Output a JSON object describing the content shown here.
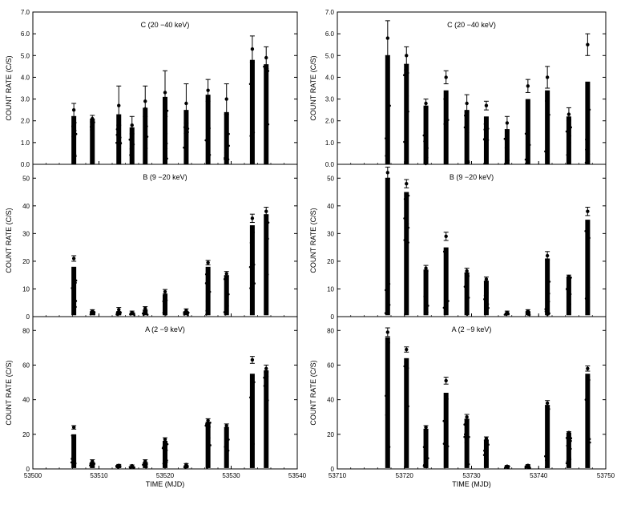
{
  "chart_data": {
    "type": "scatter",
    "description_free": true,
    "ylabel": "COUNT RATE (C/S)",
    "xlabel": "TIME (MJD)",
    "columns": [
      {
        "xlim": [
          53500,
          53540
        ],
        "xticks": [
          53500,
          53510,
          53520,
          53530,
          53540
        ],
        "panels": [
          {
            "title": "C (20 −40 keV)",
            "ylim": [
              0,
              7
            ],
            "yticks": [
              0.0,
              1.0,
              2.0,
              3.0,
              4.0,
              5.0,
              6.0,
              7.0
            ],
            "ytick_labels": [
              "0.0",
              "1.0",
              "2.0",
              "3.0",
              "4.0",
              "5.0",
              "6.0",
              "7.0"
            ],
            "bars": [
              {
                "x": 53506.2,
                "low": 0.0,
                "high": 2.2,
                "peak": 2.5,
                "err": 0.3
              },
              {
                "x": 53509.0,
                "low": 0.0,
                "high": 2.1,
                "peak": 2.1,
                "err": 0.15
              },
              {
                "x": 53513.0,
                "low": 0.0,
                "high": 2.3,
                "peak": 2.7,
                "err": 0.9
              },
              {
                "x": 53515.0,
                "low": 0.0,
                "high": 1.7,
                "peak": 1.8,
                "err": 0.4
              },
              {
                "x": 53517.0,
                "low": 0.0,
                "high": 2.6,
                "peak": 2.9,
                "err": 0.7
              },
              {
                "x": 53520.0,
                "low": 0.0,
                "high": 3.1,
                "peak": 3.3,
                "err": 1.0
              },
              {
                "x": 53523.2,
                "low": 0.0,
                "high": 2.5,
                "peak": 2.8,
                "err": 0.9
              },
              {
                "x": 53526.5,
                "low": 0.0,
                "high": 3.2,
                "peak": 3.4,
                "err": 0.5
              },
              {
                "x": 53529.3,
                "low": 0.0,
                "high": 2.4,
                "peak": 3.0,
                "err": 0.7
              },
              {
                "x": 53533.2,
                "low": 0.0,
                "high": 4.8,
                "peak": 5.3,
                "err": 0.6
              },
              {
                "x": 53535.3,
                "low": 0.0,
                "high": 4.6,
                "peak": 4.9,
                "err": 0.5
              }
            ]
          },
          {
            "title": "B (9 −20 keV)",
            "ylim": [
              0,
              55
            ],
            "yticks": [
              0,
              10,
              20,
              30,
              40,
              50
            ],
            "ytick_labels": [
              "0",
              "10",
              "20",
              "30",
              "40",
              "50"
            ],
            "bars": [
              {
                "x": 53506.2,
                "low": 0.5,
                "high": 18,
                "peak": 21,
                "err": 1.0
              },
              {
                "x": 53509.0,
                "low": 0.5,
                "high": 2,
                "peak": 2,
                "err": 0.5
              },
              {
                "x": 53513.0,
                "low": 0.5,
                "high": 2,
                "peak": 2.5,
                "err": 0.8
              },
              {
                "x": 53515.0,
                "low": 0.5,
                "high": 1.5,
                "peak": 1.5,
                "err": 0.5
              },
              {
                "x": 53517.0,
                "low": 0.5,
                "high": 2.5,
                "peak": 3,
                "err": 0.6
              },
              {
                "x": 53520.0,
                "low": 0.5,
                "high": 8,
                "peak": 9,
                "err": 0.8
              },
              {
                "x": 53523.2,
                "low": 0.5,
                "high": 2,
                "peak": 2.2,
                "err": 0.6
              },
              {
                "x": 53526.5,
                "low": 0.5,
                "high": 18,
                "peak": 19.5,
                "err": 0.8
              },
              {
                "x": 53529.3,
                "low": 0.5,
                "high": 15,
                "peak": 15.5,
                "err": 0.8
              },
              {
                "x": 53533.2,
                "low": 0.5,
                "high": 33,
                "peak": 35.5,
                "err": 1.5
              },
              {
                "x": 53535.3,
                "low": 0.5,
                "high": 37,
                "peak": 38,
                "err": 1.5
              }
            ]
          },
          {
            "title": "A (2 −9 keV)",
            "ylim": [
              0,
              88
            ],
            "yticks": [
              0,
              20,
              40,
              60,
              80
            ],
            "ytick_labels": [
              "0",
              "20",
              "40",
              "60",
              "80"
            ],
            "bars": [
              {
                "x": 53506.2,
                "low": 0.5,
                "high": 20,
                "peak": 24,
                "err": 1.0
              },
              {
                "x": 53509.0,
                "low": 0.5,
                "high": 4,
                "peak": 4.5,
                "err": 0.8
              },
              {
                "x": 53513.0,
                "low": 0.5,
                "high": 2,
                "peak": 2,
                "err": 0.6
              },
              {
                "x": 53515.0,
                "low": 0.5,
                "high": 1.5,
                "peak": 1.8,
                "err": 0.5
              },
              {
                "x": 53517.0,
                "low": 0.5,
                "high": 4,
                "peak": 4.5,
                "err": 0.8
              },
              {
                "x": 53520.0,
                "low": 0.5,
                "high": 16,
                "peak": 17,
                "err": 1.0
              },
              {
                "x": 53523.2,
                "low": 0.5,
                "high": 2,
                "peak": 2.5,
                "err": 0.6
              },
              {
                "x": 53526.5,
                "low": 0.5,
                "high": 27,
                "peak": 28,
                "err": 1.0
              },
              {
                "x": 53529.3,
                "low": 0.5,
                "high": 24,
                "peak": 25,
                "err": 1.0
              },
              {
                "x": 53533.2,
                "low": 0.5,
                "high": 55,
                "peak": 63,
                "err": 2.0
              },
              {
                "x": 53535.3,
                "low": 0.5,
                "high": 57,
                "peak": 58,
                "err": 2.0
              }
            ]
          }
        ]
      },
      {
        "xlim": [
          53710,
          53750
        ],
        "xticks": [
          53710,
          53720,
          53730,
          53740,
          53750
        ],
        "panels": [
          {
            "title": "C (20 −40 keV)",
            "ylim": [
              0,
              7
            ],
            "yticks": [
              0.0,
              1.0,
              2.0,
              3.0,
              4.0,
              5.0,
              6.0,
              7.0
            ],
            "ytick_labels": [
              "0.0",
              "1.0",
              "2.0",
              "3.0",
              "4.0",
              "5.0",
              "6.0",
              "7.0"
            ],
            "bars": [
              {
                "x": 53717.5,
                "low": 0.0,
                "high": 5.0,
                "peak": 5.8,
                "err": 0.8
              },
              {
                "x": 53720.3,
                "low": 0.0,
                "high": 4.6,
                "peak": 5.0,
                "err": 0.4
              },
              {
                "x": 53723.2,
                "low": 0.0,
                "high": 2.7,
                "peak": 2.8,
                "err": 0.2
              },
              {
                "x": 53726.2,
                "low": 0.0,
                "high": 3.4,
                "peak": 4.0,
                "err": 0.3
              },
              {
                "x": 53729.3,
                "low": 0.0,
                "high": 2.5,
                "peak": 2.8,
                "err": 0.4
              },
              {
                "x": 53732.2,
                "low": 0.0,
                "high": 2.2,
                "peak": 2.7,
                "err": 0.2
              },
              {
                "x": 53735.3,
                "low": 0.0,
                "high": 1.6,
                "peak": 1.9,
                "err": 0.3
              },
              {
                "x": 53738.4,
                "low": 0.0,
                "high": 3.0,
                "peak": 3.6,
                "err": 0.3
              },
              {
                "x": 53741.3,
                "low": 0.0,
                "high": 3.4,
                "peak": 4.0,
                "err": 0.5
              },
              {
                "x": 53744.5,
                "low": 0.0,
                "high": 2.2,
                "peak": 2.3,
                "err": 0.3
              },
              {
                "x": 53747.3,
                "low": 0.0,
                "high": 3.8,
                "peak": 5.5,
                "err": 0.5
              }
            ]
          },
          {
            "title": "B (9 −20 keV)",
            "ylim": [
              0,
              55
            ],
            "yticks": [
              0,
              10,
              20,
              30,
              40,
              50
            ],
            "ytick_labels": [
              "0",
              "10",
              "20",
              "30",
              "40",
              "50"
            ],
            "bars": [
              {
                "x": 53717.5,
                "low": 0.5,
                "high": 50,
                "peak": 52,
                "err": 2.0
              },
              {
                "x": 53720.3,
                "low": 0.5,
                "high": 45,
                "peak": 48,
                "err": 1.5
              },
              {
                "x": 53723.2,
                "low": 0.5,
                "high": 17,
                "peak": 17.5,
                "err": 1.0
              },
              {
                "x": 53726.2,
                "low": 0.5,
                "high": 25,
                "peak": 29,
                "err": 1.5
              },
              {
                "x": 53729.3,
                "low": 0.5,
                "high": 16,
                "peak": 16.5,
                "err": 1.0
              },
              {
                "x": 53732.2,
                "low": 0.5,
                "high": 13,
                "peak": 13.5,
                "err": 0.8
              },
              {
                "x": 53735.3,
                "low": 0.5,
                "high": 1.5,
                "peak": 1.5,
                "err": 0.5
              },
              {
                "x": 53738.4,
                "low": 0.5,
                "high": 2.0,
                "peak": 2.0,
                "err": 0.5
              },
              {
                "x": 53741.3,
                "low": 0.5,
                "high": 21,
                "peak": 22,
                "err": 1.5
              },
              {
                "x": 53744.5,
                "low": 0.5,
                "high": 14.5,
                "peak": 14.5,
                "err": 0.5
              },
              {
                "x": 53747.3,
                "low": 0.5,
                "high": 35,
                "peak": 38,
                "err": 1.5
              }
            ]
          },
          {
            "title": "A (2 −9 keV)",
            "ylim": [
              0,
              88
            ],
            "yticks": [
              0,
              20,
              40,
              60,
              80
            ],
            "ytick_labels": [
              "0",
              "20",
              "40",
              "60",
              "80"
            ],
            "bars": [
              {
                "x": 53717.5,
                "low": 0.5,
                "high": 76,
                "peak": 79,
                "err": 2.5
              },
              {
                "x": 53720.3,
                "low": 0.5,
                "high": 64,
                "peak": 69,
                "err": 1.5
              },
              {
                "x": 53723.2,
                "low": 0.5,
                "high": 23,
                "peak": 24,
                "err": 1.0
              },
              {
                "x": 53726.2,
                "low": 0.5,
                "high": 44,
                "peak": 51,
                "err": 2.0
              },
              {
                "x": 53729.3,
                "low": 0.5,
                "high": 29,
                "peak": 30,
                "err": 1.5
              },
              {
                "x": 53732.2,
                "low": 0.5,
                "high": 17,
                "peak": 17.5,
                "err": 1.0
              },
              {
                "x": 53735.3,
                "low": 0.5,
                "high": 1.5,
                "peak": 1.5,
                "err": 0.5
              },
              {
                "x": 53738.4,
                "low": 0.5,
                "high": 2,
                "peak": 2.0,
                "err": 0.5
              },
              {
                "x": 53741.3,
                "low": 0.5,
                "high": 37,
                "peak": 38,
                "err": 1.5
              },
              {
                "x": 53744.5,
                "low": 0.5,
                "high": 21,
                "peak": 21,
                "err": 0.5
              },
              {
                "x": 53747.3,
                "low": 0.5,
                "high": 55,
                "peak": 58,
                "err": 1.5
              }
            ]
          }
        ]
      }
    ]
  }
}
